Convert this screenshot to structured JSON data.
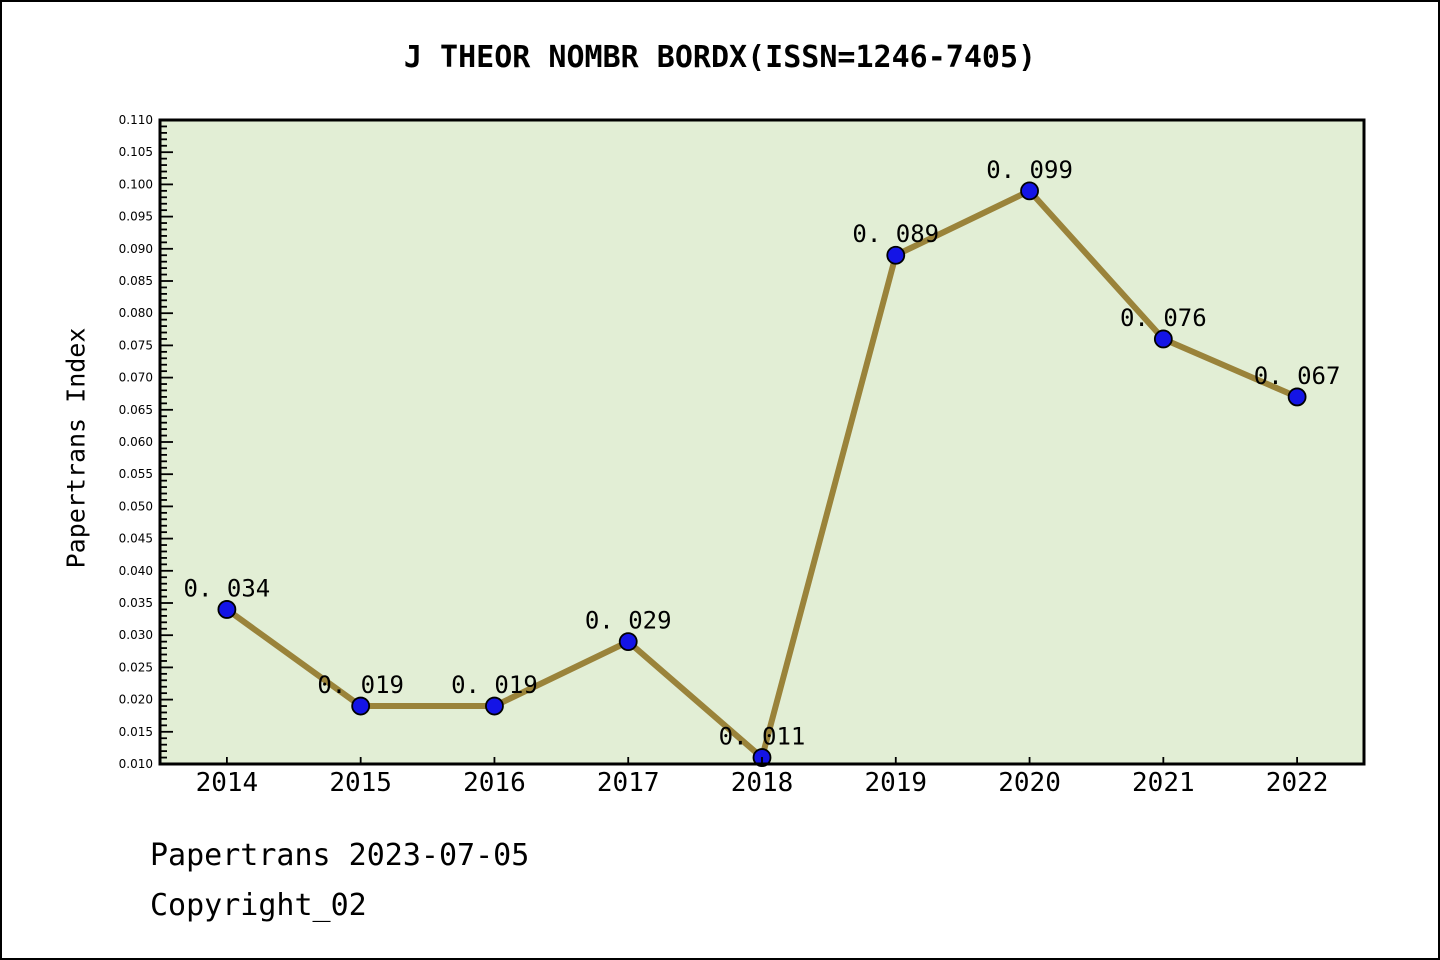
{
  "title": "J THEOR NOMBR BORDX(ISSN=1246-7405)",
  "footer": {
    "date_line": "Papertrans 2023-07-05",
    "copyright_line": "Copyright_02"
  },
  "chart_data": {
    "type": "line",
    "title": "J THEOR NOMBR BORDX(ISSN=1246-7405)",
    "xlabel": "",
    "ylabel": "Papertrans Index",
    "categories": [
      2014,
      2015,
      2016,
      2017,
      2018,
      2019,
      2020,
      2021,
      2022
    ],
    "values": [
      0.034,
      0.019,
      0.019,
      0.029,
      0.011,
      0.089,
      0.099,
      0.076,
      0.067
    ],
    "point_labels": [
      "0. 034",
      "0. 019",
      "0. 019",
      "0. 029",
      "0. 011",
      "0. 089",
      "0. 099",
      "0. 076",
      "0. 067"
    ],
    "xlim": [
      2013.5,
      2022.5
    ],
    "ylim": [
      0.01,
      0.11
    ],
    "ytick_step": 0.005,
    "ytick_minor_step": 0.001,
    "ytick_decimals": 3,
    "grid": false,
    "legend": null,
    "colors": {
      "line": "#9a833a",
      "marker_fill": "#1414e6",
      "marker_edge": "#000000",
      "plot_bg": "#e2eed5",
      "axis": "#000000",
      "text": "#000000"
    }
  }
}
